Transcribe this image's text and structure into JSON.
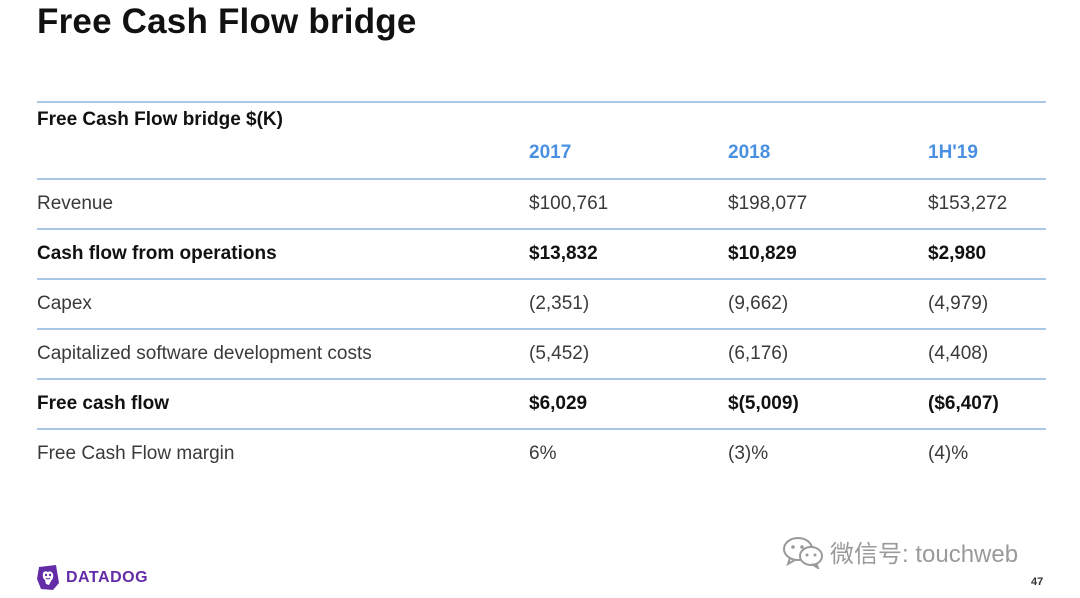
{
  "page": {
    "title": "Free Cash Flow bridge",
    "page_number": "47"
  },
  "table": {
    "caption": "Free Cash Flow bridge $(K)",
    "years": [
      "2017",
      "2018",
      "1H'19"
    ],
    "rows": [
      {
        "label": "Revenue",
        "bold": false,
        "values": [
          "$100,761",
          "$198,077",
          "$153,272"
        ]
      },
      {
        "label": "Cash flow from operations",
        "bold": true,
        "values": [
          "$13,832",
          "$10,829",
          "$2,980"
        ]
      },
      {
        "label": "Capex",
        "bold": false,
        "values": [
          "(2,351)",
          "(9,662)",
          "(4,979)"
        ]
      },
      {
        "label": "Capitalized software development costs",
        "bold": false,
        "values": [
          "(5,452)",
          "(6,176)",
          "(4,408)"
        ]
      },
      {
        "label": "Free cash flow",
        "bold": true,
        "values": [
          "$6,029",
          "$(5,009)",
          "($6,407)"
        ]
      },
      {
        "label": "Free Cash Flow margin",
        "bold": false,
        "values": [
          "6%",
          "(3)%",
          "(4)%"
        ]
      }
    ]
  },
  "footer": {
    "logo_text": "DATADOG",
    "logo_icon": "datadog-dog-icon"
  },
  "watermark": {
    "text": "微信号: touchweb",
    "icon": "wechat-icon"
  },
  "colors": {
    "accent_blue": "#4a90e2",
    "rule_blue": "#a9c8e8",
    "brand_purple": "#632ca6"
  }
}
